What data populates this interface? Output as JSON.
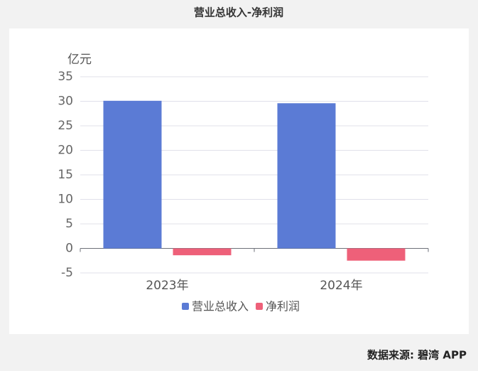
{
  "chart_data": {
    "type": "bar",
    "title": "营业总收入-净利润",
    "y_unit": "亿元",
    "categories": [
      "2023年",
      "2024年"
    ],
    "series": [
      {
        "name": "营业总收入",
        "color": "#5b7bd5",
        "values": [
          30.1,
          29.6
        ]
      },
      {
        "name": "净利润",
        "color": "#ee6079",
        "values": [
          -1.4,
          -2.5
        ]
      }
    ],
    "ylim": [
      -5,
      35
    ],
    "yticks": [
      -5,
      0,
      5,
      10,
      15,
      20,
      25,
      30,
      35
    ],
    "grid": true,
    "source": "数据来源: 碧湾 APP"
  }
}
